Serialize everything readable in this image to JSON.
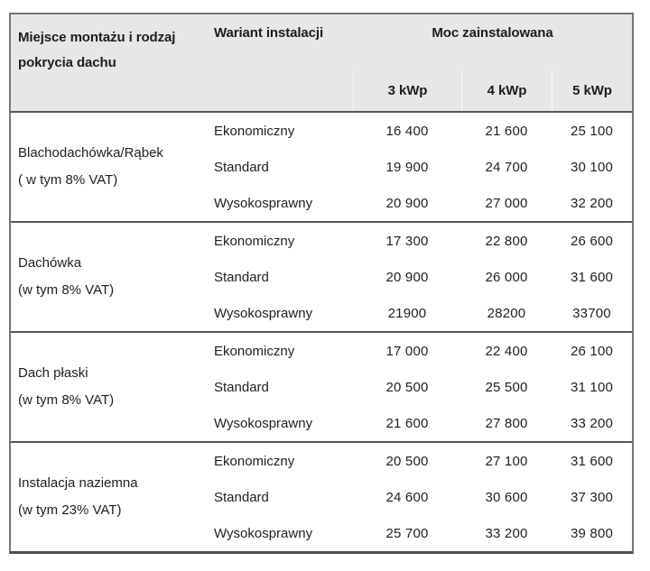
{
  "table": {
    "header": {
      "location_label": "Miejsce montażu i rodzaj pokrycia dachu",
      "variant_label": "Wariant instalacji",
      "power_label": "Moc zainstalowana",
      "power_cols": [
        "3 kWp",
        "4 kWp",
        "5 kWp"
      ]
    },
    "groups": [
      {
        "location": "Blachodachówka/Rąbek",
        "vat": "( w tym 8% VAT)",
        "rows": [
          {
            "variant": "Ekonomiczny",
            "values": [
              "16 400",
              "21 600",
              "25 100"
            ]
          },
          {
            "variant": "Standard",
            "values": [
              "19 900",
              "24 700",
              "30 100"
            ]
          },
          {
            "variant": "Wysokosprawny",
            "values": [
              "20 900",
              "27 000",
              "32 200"
            ]
          }
        ]
      },
      {
        "location": "Dachówka",
        "vat": "(w tym 8% VAT)",
        "rows": [
          {
            "variant": "Ekonomiczny",
            "values": [
              "17 300",
              "22 800",
              "26 600"
            ]
          },
          {
            "variant": "Standard",
            "values": [
              "20 900",
              "26 000",
              "31 600"
            ]
          },
          {
            "variant": "Wysokosprawny",
            "values": [
              "21900",
              "28200",
              "33700"
            ]
          }
        ]
      },
      {
        "location": "Dach płaski",
        "vat": "(w tym 8% VAT)",
        "rows": [
          {
            "variant": "Ekonomiczny",
            "values": [
              "17 000",
              "22 400",
              "26 100"
            ]
          },
          {
            "variant": "Standard",
            "values": [
              "20 500",
              "25 500",
              "31 100"
            ]
          },
          {
            "variant": "Wysokosprawny",
            "values": [
              "21 600",
              "27 800",
              "33 200"
            ]
          }
        ]
      },
      {
        "location": "Instalacja naziemna",
        "vat": "(w tym 23% VAT)",
        "rows": [
          {
            "variant": "Ekonomiczny",
            "values": [
              "20 500",
              "27 100",
              "31 600"
            ]
          },
          {
            "variant": "Standard",
            "values": [
              "24 600",
              "30 600",
              "37 300"
            ]
          },
          {
            "variant": "Wysokosprawny",
            "values": [
              "25 700",
              "33 200",
              "39 800"
            ]
          }
        ]
      }
    ]
  },
  "colors": {
    "header_bg": "#e7e7e7",
    "border_outer": "#767676",
    "border_inner": "#565656",
    "text": "#1f1f1f"
  }
}
